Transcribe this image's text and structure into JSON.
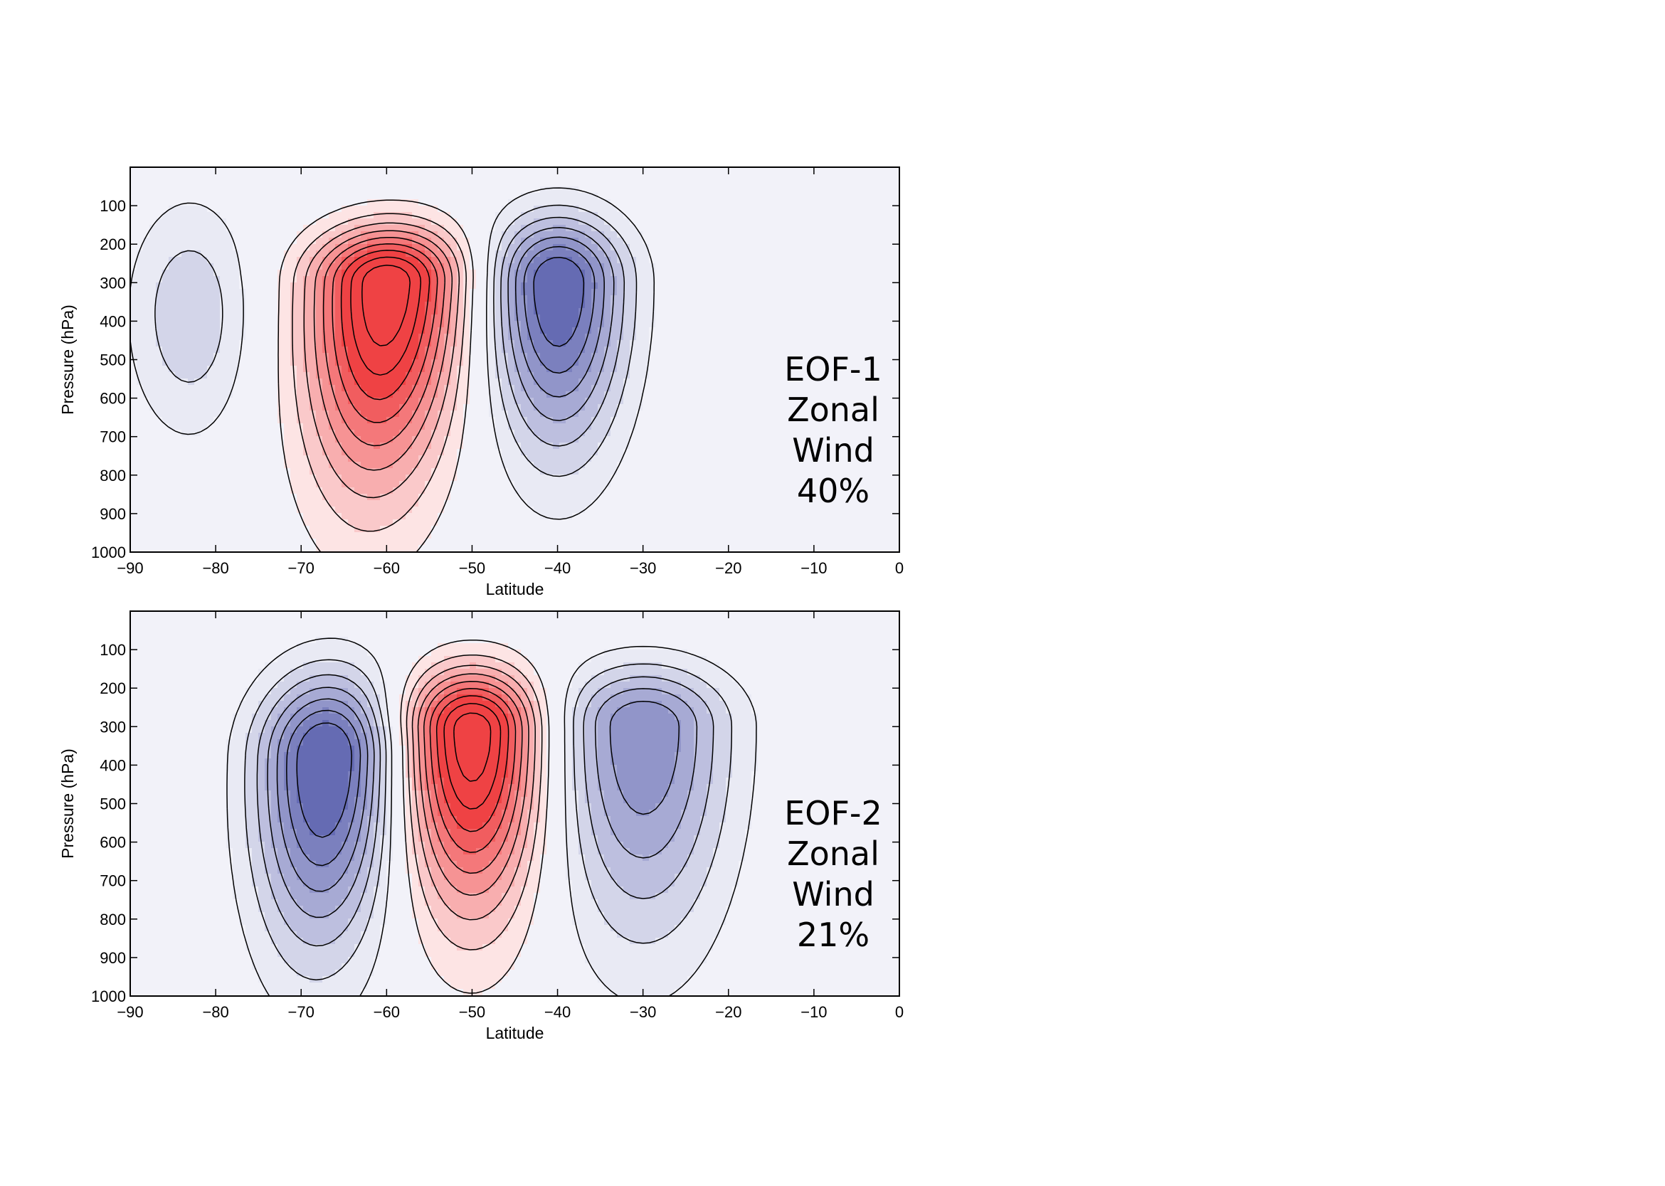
{
  "chart_data": [
    {
      "type": "contour",
      "annotation": [
        "EOF-1",
        "Zonal",
        "Wind",
        "40%"
      ],
      "xlabel": "Latitude",
      "ylabel": "Pressure (hPa)",
      "xlim": [
        -90,
        0
      ],
      "ylim": [
        0,
        1000
      ],
      "y_inverted": true,
      "xticks": [
        -90,
        -80,
        -70,
        -60,
        -50,
        -40,
        -30,
        -20,
        -10,
        0
      ],
      "yticks": [
        100,
        200,
        300,
        400,
        500,
        600,
        700,
        800,
        900,
        1000
      ],
      "x_tick_labels": [
        "−90",
        "−80",
        "−70",
        "−60",
        "−50",
        "−40",
        "−30",
        "−20",
        "−10",
        "0"
      ],
      "y_tick_labels": [
        "100",
        "200",
        "300",
        "400",
        "500",
        "600",
        "700",
        "800",
        "900",
        "1000"
      ],
      "positive_color": "#ee3537",
      "negative_color": "#5a60ae",
      "shaded_extrema": [
        {
          "sign": "positive",
          "lat": -60,
          "pressure": 300
        },
        {
          "sign": "negative",
          "lat": -40,
          "pressure": 300
        },
        {
          "sign": "negative",
          "lat": -83,
          "pressure": 380
        }
      ],
      "fill_lobes": [
        {
          "lat": -60,
          "p": 300,
          "amp": 1.0,
          "sx": 6.2,
          "p_top": 0,
          "sp_up": 100,
          "sp_down": 360,
          "tilt": -0.003
        },
        {
          "lat": -40,
          "p": 300,
          "amp": -0.82,
          "sx": 5.5,
          "p_top": 40,
          "sp_up": 120,
          "sp_down": 300,
          "tilt": 0.0
        },
        {
          "lat": -83,
          "p": 380,
          "amp": -0.28,
          "sx": 5.0,
          "p_top": 0,
          "sp_up": 200,
          "sp_down": 220,
          "tilt": 0.0
        }
      ],
      "zonal_wind_jet": {
        "lat": -50,
        "pressure": 320,
        "amp": 1.0,
        "sx": 9.5,
        "p_top": 0,
        "sp_up": 160,
        "sp_down": 560,
        "tilt": -0.01
      },
      "subtropical_jet": {
        "lat": -30,
        "pressure": 180,
        "amp": 0.75,
        "sx": 7.5,
        "p_top": 0,
        "sp_up": 70,
        "sp_down": 380,
        "tilt": 0.0
      }
    },
    {
      "type": "contour",
      "annotation": [
        "EOF-2",
        "Zonal",
        "Wind",
        "21%"
      ],
      "xlabel": "Latitude",
      "ylabel": "Pressure (hPa)",
      "xlim": [
        -90,
        0
      ],
      "ylim": [
        0,
        1000
      ],
      "y_inverted": true,
      "xticks": [
        -90,
        -80,
        -70,
        -60,
        -50,
        -40,
        -30,
        -20,
        -10,
        0
      ],
      "yticks": [
        100,
        200,
        300,
        400,
        500,
        600,
        700,
        800,
        900,
        1000
      ],
      "x_tick_labels": [
        "−90",
        "−80",
        "−70",
        "−60",
        "−50",
        "−40",
        "−30",
        "−20",
        "−10",
        "0"
      ],
      "y_tick_labels": [
        "100",
        "200",
        "300",
        "400",
        "500",
        "600",
        "700",
        "800",
        "900",
        "1000"
      ],
      "positive_color": "#ee3537",
      "negative_color": "#5a60ae",
      "shaded_extrema": [
        {
          "sign": "positive",
          "lat": -50,
          "pressure": 310
        },
        {
          "sign": "negative",
          "lat": -67,
          "pressure": 380
        },
        {
          "sign": "negative",
          "lat": -30,
          "pressure": 300
        }
      ],
      "fill_lobes": [
        {
          "lat": -50,
          "p": 310,
          "amp": 1.0,
          "sx": 5.6,
          "p_top": 0,
          "sp_up": 110,
          "sp_down": 320,
          "tilt": 0.0
        },
        {
          "lat": -67,
          "p": 380,
          "amp": -0.85,
          "sx": 5.6,
          "p_top": 0,
          "sp_up": 150,
          "sp_down": 340,
          "tilt": -0.002
        },
        {
          "lat": -30,
          "p": 300,
          "amp": -0.6,
          "sx": 7.0,
          "p_top": 40,
          "sp_up": 110,
          "sp_down": 380,
          "tilt": 0.0
        }
      ],
      "zonal_wind_jet": {
        "lat": -50,
        "pressure": 320,
        "amp": 1.0,
        "sx": 9.5,
        "p_top": 0,
        "sp_up": 160,
        "sp_down": 560,
        "tilt": -0.01
      },
      "subtropical_jet": {
        "lat": -30,
        "pressure": 180,
        "amp": 0.75,
        "sx": 7.5,
        "p_top": 0,
        "sp_up": 70,
        "sp_down": 380,
        "tilt": 0.0
      }
    }
  ]
}
